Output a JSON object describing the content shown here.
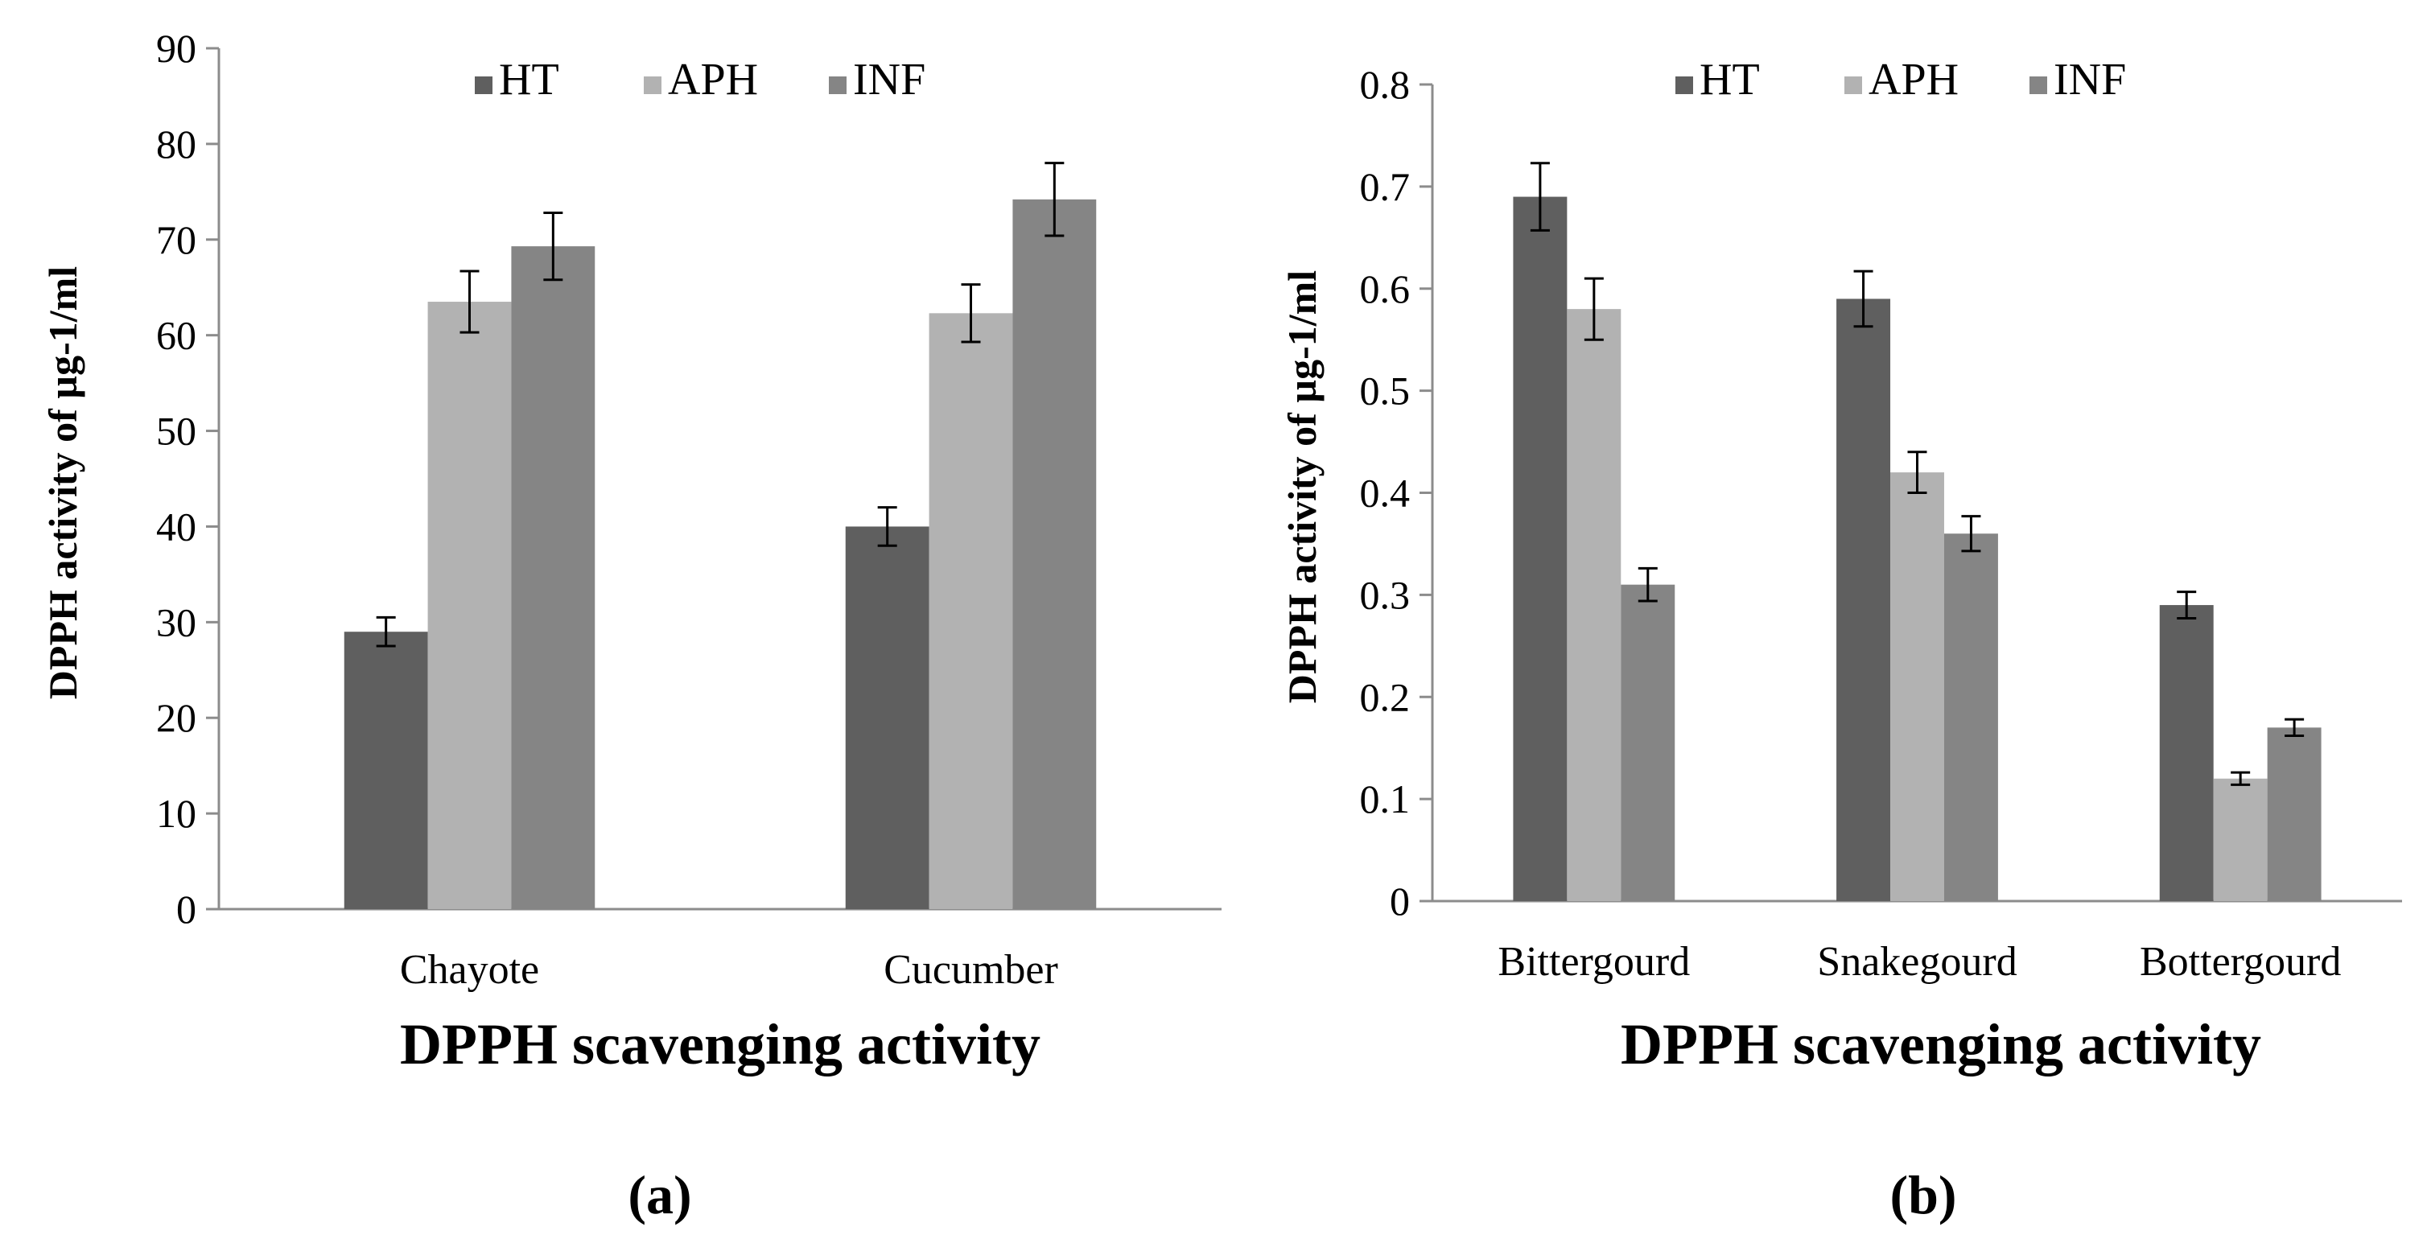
{
  "chart_data": [
    {
      "type": "bar",
      "title": "",
      "panel_label": "(a)",
      "xlabel": "DPPH  scavenging activity",
      "ylabel": "DPPH activity of µg-1/ml",
      "ylim": [
        0,
        90
      ],
      "yticks": [
        "0",
        "10",
        "20",
        "30",
        "40",
        "50",
        "60",
        "70",
        "80",
        "90"
      ],
      "categories": [
        "Chayote",
        "Cucumber"
      ],
      "legend_position": "top",
      "grid": false,
      "series": [
        {
          "name": "HT",
          "color": "#5f5f5f",
          "values": [
            29,
            40
          ],
          "errors": [
            1.5,
            2
          ]
        },
        {
          "name": "APH",
          "color": "#b2b2b2",
          "values": [
            63.5,
            62.3
          ],
          "errors": [
            3.2,
            3
          ]
        },
        {
          "name": "INF",
          "color": "#858585",
          "values": [
            69.3,
            74.2
          ],
          "errors": [
            3.5,
            3.8
          ]
        }
      ]
    },
    {
      "type": "bar",
      "title": "",
      "panel_label": "(b)",
      "xlabel": "DPPH  scavenging activity",
      "ylabel": "DPPH activity of µg-1/ml",
      "ylim": [
        0,
        0.8
      ],
      "yticks": [
        "0",
        "0.1",
        "0.2",
        "0.3",
        "0.4",
        "0.5",
        "0.6",
        "0.7",
        "0.8"
      ],
      "categories": [
        "Bittergourd",
        "Snakegourd",
        "Bottergourd"
      ],
      "legend_position": "top",
      "grid": false,
      "series": [
        {
          "name": "HT",
          "color": "#5f5f5f",
          "values": [
            0.69,
            0.59,
            0.29
          ],
          "errors": [
            0.033,
            0.027,
            0.013
          ]
        },
        {
          "name": "APH",
          "color": "#b2b2b2",
          "values": [
            0.58,
            0.42,
            0.12
          ],
          "errors": [
            0.03,
            0.02,
            0.006
          ]
        },
        {
          "name": "INF",
          "color": "#858585",
          "values": [
            0.31,
            0.36,
            0.17
          ],
          "errors": [
            0.016,
            0.017,
            0.008
          ]
        }
      ]
    }
  ]
}
